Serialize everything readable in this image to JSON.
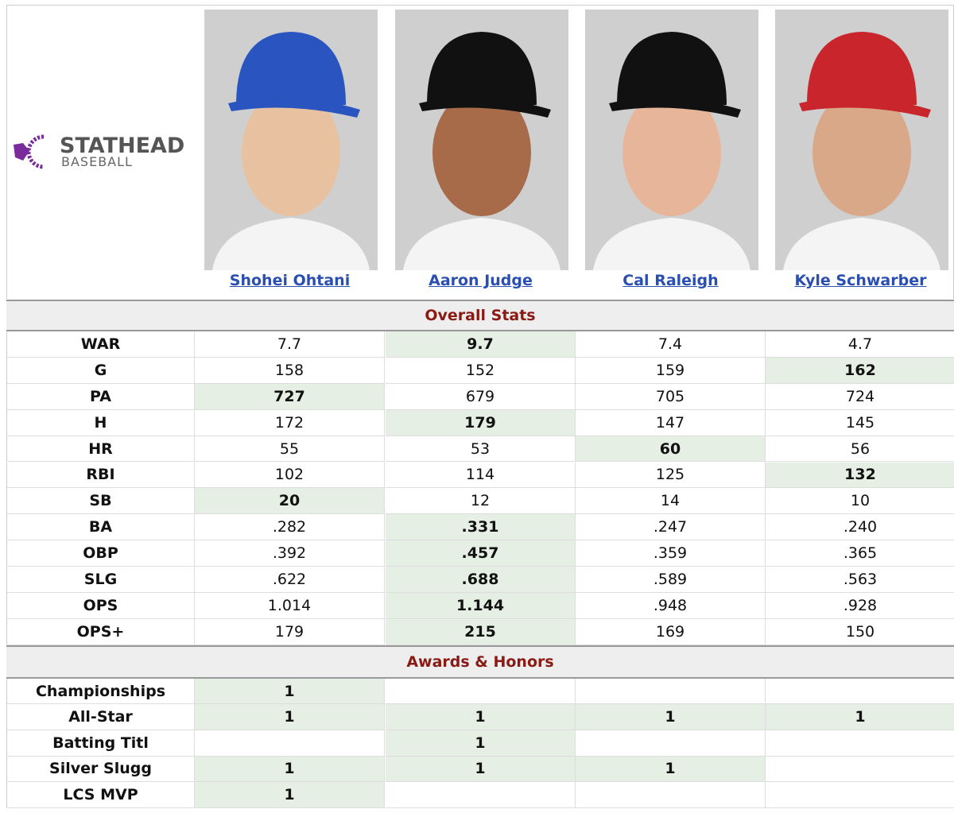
{
  "logo": {
    "title": "STATHEAD",
    "subtitle": "BASEBALL"
  },
  "players": [
    "Shohei Ohtani",
    "Aaron Judge",
    "Cal Raleigh",
    "Kyle Schwarber"
  ],
  "sections": [
    {
      "title": "Overall Stats",
      "rows": [
        {
          "label": "WAR",
          "cells": [
            "7.7",
            "9.7",
            "7.4",
            "4.7"
          ]
        },
        {
          "label": "G",
          "cells": [
            "158",
            "152",
            "159",
            "162"
          ]
        },
        {
          "label": "PA",
          "cells": [
            "727",
            "679",
            "705",
            "724"
          ]
        },
        {
          "label": "H",
          "cells": [
            "172",
            "179",
            "147",
            "145"
          ]
        },
        {
          "label": "HR",
          "cells": [
            "55",
            "53",
            "60",
            "56"
          ]
        },
        {
          "label": "RBI",
          "cells": [
            "102",
            "114",
            "125",
            "132"
          ]
        },
        {
          "label": "SB",
          "cells": [
            "20",
            "12",
            "14",
            "10"
          ]
        },
        {
          "label": "BA",
          "cells": [
            ".282",
            ".331",
            ".247",
            ".240"
          ]
        },
        {
          "label": "OBP",
          "cells": [
            ".392",
            ".457",
            ".359",
            ".365"
          ]
        },
        {
          "label": "SLG",
          "cells": [
            ".622",
            ".688",
            ".589",
            ".563"
          ]
        },
        {
          "label": "OPS",
          "cells": [
            "1.014",
            "1.144",
            ".948",
            ".928"
          ]
        },
        {
          "label": "OPS+",
          "cells": [
            "179",
            "215",
            "169",
            "150"
          ]
        }
      ]
    },
    {
      "title": "Awards & Honors",
      "rows": [
        {
          "label": "Championships",
          "cells": [
            1,
            null,
            null,
            null
          ]
        },
        {
          "label": "All-Star",
          "cells": [
            1,
            1,
            1,
            1
          ]
        },
        {
          "label": "Batting Titl",
          "cells": [
            null,
            1,
            null,
            null
          ]
        },
        {
          "label": "Silver Slugg",
          "cells": [
            1,
            1,
            1,
            null
          ]
        },
        {
          "label": "LCS MVP",
          "cells": [
            1,
            null,
            null,
            null
          ]
        }
      ]
    }
  ]
}
